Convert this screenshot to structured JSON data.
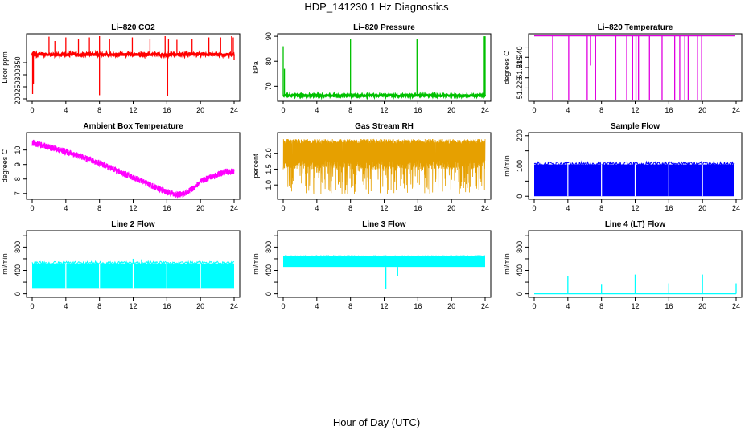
{
  "page": {
    "title": "HDP_141230  1 Hz Diagnostics",
    "x_axis_title": "Hour of Day (UTC)"
  },
  "chart_data": [
    {
      "id": "co2",
      "type": "line",
      "title": "Li–820 CO2",
      "ylabel": "Licor ppm",
      "color": "#ff0000",
      "xlim": [
        0,
        24
      ],
      "ylim": [
        190,
        470
      ],
      "xticks": [
        0,
        4,
        8,
        12,
        16,
        20,
        24
      ],
      "yticks": [
        200,
        250,
        300,
        350
      ],
      "pattern": "spiky_flat",
      "base": 384,
      "noise": 6,
      "dips": [
        [
          0.05,
          220
        ],
        [
          0.15,
          260
        ],
        [
          8.0,
          215
        ],
        [
          16.1,
          210
        ],
        [
          24.0,
          360
        ]
      ],
      "spikes": [
        [
          2.0,
          458
        ],
        [
          2.7,
          440
        ],
        [
          4.0,
          455
        ],
        [
          5.5,
          450
        ],
        [
          6.8,
          455
        ],
        [
          8.0,
          460
        ],
        [
          9.2,
          450
        ],
        [
          11.9,
          455
        ],
        [
          14.0,
          450
        ],
        [
          15.8,
          460
        ],
        [
          16.2,
          450
        ],
        [
          17.2,
          445
        ],
        [
          19.0,
          450
        ],
        [
          21.0,
          455
        ],
        [
          22.4,
          455
        ],
        [
          23.7,
          460
        ],
        [
          23.9,
          455
        ]
      ]
    },
    {
      "id": "pressure",
      "type": "line",
      "title": "Li–820 Pressure",
      "ylabel": "kPa",
      "color": "#00c000",
      "xlim": [
        0,
        24
      ],
      "ylim": [
        64,
        91
      ],
      "xticks": [
        0,
        4,
        8,
        12,
        16,
        20,
        24
      ],
      "yticks": [
        70,
        80,
        90
      ],
      "pattern": "spiky_flat",
      "base": 66.3,
      "noise": 0.4,
      "dips": [],
      "spikes": [
        [
          0.0,
          86
        ],
        [
          0.15,
          77
        ],
        [
          8.0,
          89
        ],
        [
          15.9,
          89
        ],
        [
          16.0,
          89
        ],
        [
          23.9,
          90
        ],
        [
          24.0,
          90
        ]
      ]
    },
    {
      "id": "licor-temp",
      "type": "line",
      "title": "Li–820 Temperature",
      "ylabel": "degrees C",
      "color": "#e000e0",
      "xlim": [
        0,
        24
      ],
      "ylim": [
        51.2185,
        51.2515
      ],
      "xticks": [
        0,
        4,
        8,
        12,
        16,
        20,
        24
      ],
      "yticks": [
        51.225,
        51.23,
        51.235,
        51.24,
        51.245
      ],
      "ytick_labels": [
        "51.225",
        "",
        "51.235",
        "51.240",
        ""
      ],
      "pattern": "flat_dips",
      "base": 51.2505,
      "dips": [
        [
          2.2,
          51.219
        ],
        [
          4.1,
          51.219
        ],
        [
          6.3,
          51.219
        ],
        [
          6.7,
          51.236
        ],
        [
          7.3,
          51.219
        ],
        [
          9.7,
          51.219
        ],
        [
          11.0,
          51.219
        ],
        [
          11.7,
          51.219
        ],
        [
          12.1,
          51.219
        ],
        [
          12.4,
          51.219
        ],
        [
          13.7,
          51.219
        ],
        [
          15.2,
          51.219
        ],
        [
          16.7,
          51.219
        ],
        [
          17.3,
          51.219
        ],
        [
          17.9,
          51.219
        ],
        [
          18.3,
          51.219
        ],
        [
          19.4,
          51.219
        ],
        [
          19.9,
          51.219
        ]
      ],
      "segments": [
        [
          0,
          23.9
        ]
      ]
    },
    {
      "id": "ambient-temp",
      "type": "line",
      "title": "Ambient Box Temperature",
      "ylabel": "degrees C",
      "color": "#ff00ff",
      "xlim": [
        0,
        24
      ],
      "ylim": [
        6.6,
        11.2
      ],
      "xticks": [
        0,
        4,
        8,
        12,
        16,
        20,
        24
      ],
      "yticks": [
        7,
        8,
        9,
        10
      ],
      "pattern": "curve",
      "noise": 0.22,
      "points": [
        [
          0,
          10.5
        ],
        [
          2,
          10.2
        ],
        [
          4,
          9.9
        ],
        [
          6,
          9.5
        ],
        [
          8,
          9.1
        ],
        [
          10,
          8.6
        ],
        [
          12,
          8.1
        ],
        [
          14,
          7.6
        ],
        [
          16,
          7.1
        ],
        [
          17,
          6.9
        ],
        [
          18,
          6.95
        ],
        [
          19,
          7.3
        ],
        [
          20,
          7.8
        ],
        [
          21,
          8.1
        ],
        [
          22,
          8.3
        ],
        [
          23,
          8.5
        ],
        [
          24,
          8.5
        ]
      ]
    },
    {
      "id": "gas-rh",
      "type": "line",
      "title": "Gas Stream RH",
      "ylabel": "percent",
      "color": "#e6a000",
      "xlim": [
        0,
        24
      ],
      "ylim": [
        0.55,
        2.65
      ],
      "xticks": [
        0,
        4,
        8,
        12,
        16,
        20,
        24
      ],
      "yticks": [
        1.0,
        1.5,
        2.0
      ],
      "ytick_labels": [
        "1.0",
        "1.5",
        "2.0"
      ],
      "pattern": "band",
      "low": 1.5,
      "high": 2.45,
      "dipmin": 0.7
    },
    {
      "id": "sample-flow",
      "type": "line",
      "title": "Sample Flow",
      "ylabel": "ml/min",
      "color": "#0000ff",
      "xlim": [
        0,
        24
      ],
      "ylim": [
        -10,
        210
      ],
      "xticks": [
        0,
        4,
        8,
        12,
        16,
        20,
        24
      ],
      "yticks": [
        0,
        50,
        100,
        150,
        200
      ],
      "ytick_labels": [
        "0",
        "",
        "100",
        "",
        "200"
      ],
      "pattern": "block",
      "low": 0,
      "high": 105,
      "gaps": [
        4.0,
        8.0,
        12.0,
        16.0,
        20.0
      ],
      "end": 23.8
    },
    {
      "id": "line2-flow",
      "type": "line",
      "title": "Line 2 Flow",
      "ylabel": "ml/min",
      "color": "#00ffff",
      "xlim": [
        0,
        24
      ],
      "ylim": [
        -60,
        1080
      ],
      "xticks": [
        0,
        4,
        8,
        12,
        16,
        20,
        24
      ],
      "yticks": [
        0,
        200,
        400,
        600,
        800,
        1000
      ],
      "ytick_labels": [
        "0",
        "",
        "400",
        "",
        "800",
        ""
      ],
      "pattern": "block",
      "low": 100,
      "high": 520,
      "gaps": [
        4.0,
        8.0,
        12.0,
        16.0,
        20.0
      ],
      "end": 24.0,
      "spikes": [
        [
          12.0,
          600
        ],
        [
          13.0,
          590
        ]
      ]
    },
    {
      "id": "line3-flow",
      "type": "line",
      "title": "Line 3 Flow",
      "ylabel": "ml/min",
      "color": "#00ffff",
      "xlim": [
        0,
        24
      ],
      "ylim": [
        -60,
        1080
      ],
      "xticks": [
        0,
        4,
        8,
        12,
        16,
        20,
        24
      ],
      "yticks": [
        0,
        200,
        400,
        600,
        800,
        1000
      ],
      "ytick_labels": [
        "0",
        "",
        "400",
        "",
        "800",
        ""
      ],
      "pattern": "block",
      "low": 460,
      "high": 640,
      "gaps": [],
      "end": 24.0,
      "dips": [
        [
          12.2,
          80
        ],
        [
          13.6,
          300
        ]
      ]
    },
    {
      "id": "line4-flow",
      "type": "line",
      "title": "Line 4 (LT) Flow",
      "ylabel": "ml/min",
      "color": "#00ffff",
      "xlim": [
        0,
        24
      ],
      "ylim": [
        -60,
        1080
      ],
      "xticks": [
        0,
        4,
        8,
        12,
        16,
        20,
        24
      ],
      "yticks": [
        0,
        200,
        400,
        600,
        800,
        1000
      ],
      "ytick_labels": [
        "0",
        "",
        "400",
        "",
        "800",
        ""
      ],
      "pattern": "spiky_flat",
      "base": 0,
      "noise": 0,
      "dips": [],
      "spikes": [
        [
          4.0,
          310
        ],
        [
          8.0,
          170
        ],
        [
          12.0,
          330
        ],
        [
          16.0,
          180
        ],
        [
          20.0,
          330
        ],
        [
          24.0,
          180
        ]
      ]
    }
  ]
}
